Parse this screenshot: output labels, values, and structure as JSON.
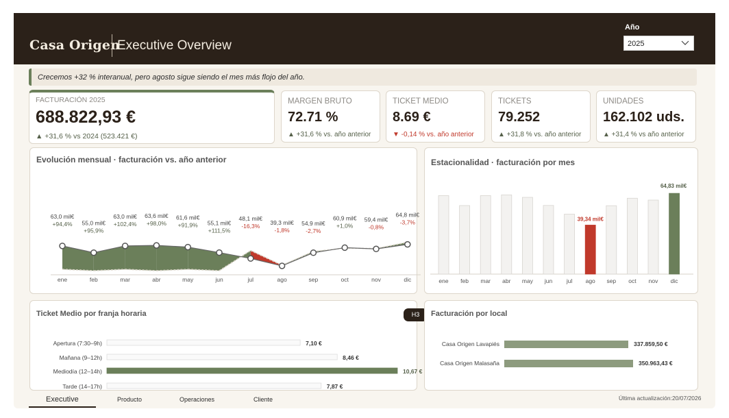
{
  "header": {
    "brand": "Casa Origen",
    "title": "Executive Overview",
    "year_filter": {
      "label": "Año",
      "value": "2025"
    }
  },
  "insight": "Crecemos +32 % interanual, pero agosto sigue siendo el mes más flojo del año.",
  "kpis": {
    "main": {
      "label": "FACTURACIÓN 2025",
      "value": "688.822,93 €",
      "delta": "▲ +31,6 % vs 2024 (523.421 €)"
    },
    "cards": [
      {
        "label": "MARGEN BRUTO",
        "value": "72.71 %",
        "delta": "▲ +31,6 % vs. año anterior",
        "negative": false
      },
      {
        "label": "TICKET MEDIO",
        "value": "8.69 €",
        "delta": "▼ -0,14 % vs. año anterior",
        "negative": true
      },
      {
        "label": "TICKETS",
        "value": "79.252",
        "delta": "▲ +31,8 % vs. año anterior",
        "negative": false
      },
      {
        "label": "UNIDADES",
        "value": "162.102 uds.",
        "delta": "▲ +31,4 % vs año anterior",
        "negative": false
      }
    ]
  },
  "colors": {
    "accent_green": "#6b7f5a",
    "negative_red": "#c0392b",
    "header_bg": "#2b2119",
    "bar_light": "#f3f2f0"
  },
  "line_chart": {
    "title": "Evolución mensual · facturación vs. año anterior"
  },
  "season_chart": {
    "title": "Estacionalidad · facturación por mes"
  },
  "ticket_chart": {
    "title": "Ticket Medio por franja horaria",
    "badge": "H3"
  },
  "local_chart": {
    "title": "Facturación por local"
  },
  "chart_data": [
    {
      "type": "line",
      "title": "Evolución mensual · facturación vs. año anterior",
      "categories": [
        "ene",
        "feb",
        "mar",
        "abr",
        "may",
        "jun",
        "jul",
        "ago",
        "sep",
        "oct",
        "nov",
        "dic"
      ],
      "labels": [
        "63,0 mil€",
        "55,0 mil€",
        "63,0 mil€",
        "63,6 mil€",
        "61,6 mil€",
        "55,1 mil€",
        "48,1 mil€",
        "39,3 mil€",
        "54,9 mil€",
        "60,9 mil€",
        "59,4 mil€",
        "64,8 mil€"
      ],
      "growth": [
        "+94,4%",
        "+95,9%",
        "+102,4%",
        "+98,0%",
        "+91,9%",
        "+111,5%",
        "-16,3%",
        "-1,8%",
        "-2,7%",
        "+1,0%",
        "-0,8%",
        "-3,7%"
      ],
      "series": [
        {
          "name": "2025",
          "values": [
            63.0,
            55.0,
            63.0,
            63.6,
            61.6,
            55.1,
            48.1,
            39.3,
            54.9,
            60.9,
            59.4,
            64.8
          ]
        },
        {
          "name": "2024",
          "values": [
            32.4,
            28.1,
            31.1,
            32.1,
            32.1,
            26.1,
            57.5,
            40.0,
            56.4,
            60.3,
            59.9,
            67.3
          ]
        }
      ]
    },
    {
      "type": "bar",
      "title": "Estacionalidad · facturación por mes",
      "categories": [
        "ene",
        "feb",
        "mar",
        "abr",
        "may",
        "jun",
        "jul",
        "ago",
        "sep",
        "oct",
        "nov",
        "dic"
      ],
      "values": [
        63.0,
        55.0,
        63.0,
        63.6,
        61.6,
        55.1,
        48.1,
        39.34,
        54.9,
        60.9,
        59.4,
        64.83
      ],
      "highlight": {
        "min_label": "39,34 mil€",
        "max_label": "64,83 mil€"
      },
      "ylim": [
        0,
        66
      ]
    },
    {
      "type": "bar",
      "title": "Ticket Medio por franja horaria",
      "categories": [
        "Apertura (7:30–9h)",
        "Mañana (9–12h)",
        "Mediodía (12–14h)",
        "Tarde (14–17h)"
      ],
      "values": [
        7.1,
        8.46,
        10.67,
        7.87
      ],
      "labels": [
        "7,10 €",
        "8,46 €",
        "10,67 €",
        "7,87 €"
      ],
      "xlim": [
        0,
        10.67
      ]
    },
    {
      "type": "bar",
      "title": "Facturación por local",
      "categories": [
        "Casa Origen Lavapiés",
        "Casa Origen Malasaña"
      ],
      "values": [
        337859.5,
        350963.43
      ],
      "labels": [
        "337.859,50 €",
        "350.963,43 €"
      ]
    }
  ],
  "tabs": [
    "Executive",
    "Producto",
    "Operaciones",
    "Cliente"
  ],
  "updated": "Última actualización:20/07/2026"
}
